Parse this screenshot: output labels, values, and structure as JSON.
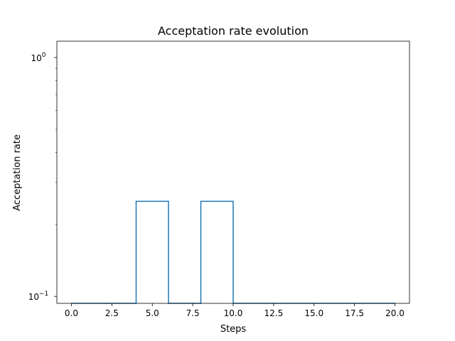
{
  "chart_data": {
    "type": "line",
    "drawstyle": "steps",
    "title": "Acceptation rate evolution",
    "xlabel": "Steps",
    "ylabel": "Acceptation rate",
    "yscale": "log",
    "xlim": [
      -0.9,
      20.9
    ],
    "ylim": [
      0.0935,
      1.17
    ],
    "grid": false,
    "line_color": "#1f77b4",
    "x_ticks": [
      {
        "value": 0.0,
        "label": "0.0"
      },
      {
        "value": 2.5,
        "label": "2.5"
      },
      {
        "value": 5.0,
        "label": "5.0"
      },
      {
        "value": 7.5,
        "label": "7.5"
      },
      {
        "value": 10.0,
        "label": "10.0"
      },
      {
        "value": 12.5,
        "label": "12.5"
      },
      {
        "value": 15.0,
        "label": "15.0"
      },
      {
        "value": 17.5,
        "label": "17.5"
      },
      {
        "value": 20.0,
        "label": "20.0"
      }
    ],
    "y_ticks": [
      {
        "value": 1.0,
        "base": "10",
        "exp": "0"
      },
      {
        "value": 0.1,
        "base": "10",
        "exp": "−1"
      }
    ],
    "series": [
      {
        "x": [
          0,
          4,
          4,
          6,
          6,
          8,
          8,
          10,
          10,
          20
        ],
        "y": [
          0.0,
          0.0,
          0.25,
          0.25,
          0.0,
          0.0,
          0.25,
          0.25,
          0.0,
          0.0
        ]
      }
    ]
  }
}
